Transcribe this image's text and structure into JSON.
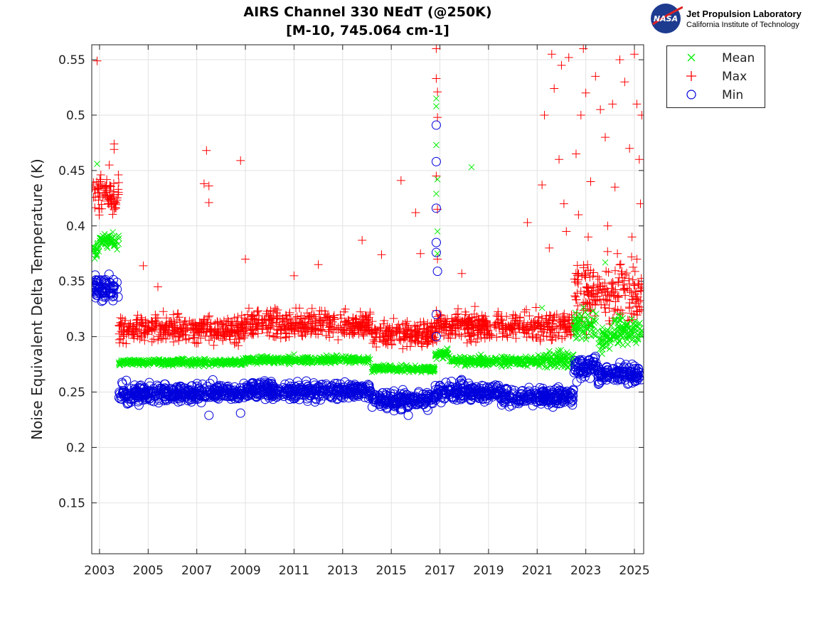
{
  "header": {
    "title_line1": "AIRS Channel 330 NEdT (@250K)",
    "title_line2": "[M-10, 745.064 cm-1]",
    "logo_text": "NASA",
    "org_name": "Jet Propulsion Laboratory",
    "org_sub": "California Institute of Technology"
  },
  "chart_data": {
    "type": "scatter",
    "title": "AIRS Channel 330 NEdT (@250K) [M-10, 745.064 cm-1]",
    "xlabel": "",
    "ylabel": "Noise Equivalent Delta Temperature (K)",
    "xlim": [
      2002.68,
      2025.38
    ],
    "ylim": [
      0.104,
      0.5635
    ],
    "xticks": [
      "2003",
      "2005",
      "2007",
      "2009",
      "2011",
      "2013",
      "2015",
      "2017",
      "2019",
      "2021",
      "2023",
      "2025"
    ],
    "yticks": [
      "0.15",
      "0.2",
      "0.25",
      "0.3",
      "0.35",
      "0.4",
      "0.45",
      "0.5",
      "0.55"
    ],
    "grid": true,
    "legend_position": "outside-top-right",
    "colors": {
      "Mean": "#00ee00",
      "Max": "#ff0000",
      "Min": "#0000dd"
    },
    "series": [
      {
        "name": "Mean",
        "marker": "x",
        "segments": [
          [
            2002.7,
            2003.0,
            0.378,
            0.004
          ],
          [
            2003.0,
            2003.8,
            0.386,
            0.003
          ],
          [
            2003.8,
            2009,
            0.277,
            0.0015
          ],
          [
            2009,
            2014.2,
            0.279,
            0.0015
          ],
          [
            2014.2,
            2016.8,
            0.271,
            0.0015
          ],
          [
            2016.8,
            2017.4,
            0.284,
            0.002
          ],
          [
            2017.4,
            2021.0,
            0.278,
            0.002
          ],
          [
            2021.0,
            2022.5,
            0.279,
            0.004
          ],
          [
            2022.5,
            2023.5,
            0.31,
            0.007
          ],
          [
            2023.5,
            2024.0,
            0.298,
            0.006
          ],
          [
            2024.0,
            2025.3,
            0.305,
            0.006
          ]
        ],
        "outliers": [
          [
            2002.9,
            0.456
          ],
          [
            2011.0,
            0.284
          ],
          [
            2016.85,
            0.515
          ],
          [
            2016.85,
            0.508
          ],
          [
            2016.85,
            0.473
          ],
          [
            2016.9,
            0.442
          ],
          [
            2016.85,
            0.429
          ],
          [
            2016.9,
            0.395
          ],
          [
            2016.9,
            0.375
          ],
          [
            2018.3,
            0.453
          ],
          [
            2023.8,
            0.367
          ],
          [
            2021.2,
            0.326
          ]
        ]
      },
      {
        "name": "Max",
        "marker": "+",
        "segments": [
          [
            2002.7,
            2003.8,
            0.428,
            0.008
          ],
          [
            2003.8,
            2009,
            0.307,
            0.006
          ],
          [
            2009,
            2014.2,
            0.311,
            0.006
          ],
          [
            2014.2,
            2016.8,
            0.303,
            0.006
          ],
          [
            2016.8,
            2022.5,
            0.31,
            0.006
          ],
          [
            2022.5,
            2025.3,
            0.338,
            0.014
          ]
        ],
        "outliers": [
          [
            2002.9,
            0.549
          ],
          [
            2003.6,
            0.474
          ],
          [
            2003.6,
            0.469
          ],
          [
            2003.4,
            0.455
          ],
          [
            2004.8,
            0.364
          ],
          [
            2005.4,
            0.345
          ],
          [
            2007.4,
            0.468
          ],
          [
            2007.3,
            0.438
          ],
          [
            2007.5,
            0.436
          ],
          [
            2007.5,
            0.421
          ],
          [
            2008.8,
            0.459
          ],
          [
            2009.0,
            0.37
          ],
          [
            2011.0,
            0.355
          ],
          [
            2012.0,
            0.365
          ],
          [
            2013.8,
            0.387
          ],
          [
            2014.6,
            0.374
          ],
          [
            2015.4,
            0.441
          ],
          [
            2016.0,
            0.412
          ],
          [
            2016.2,
            0.375
          ],
          [
            2016.85,
            0.56
          ],
          [
            2016.85,
            0.533
          ],
          [
            2016.9,
            0.521
          ],
          [
            2016.9,
            0.498
          ],
          [
            2016.85,
            0.445
          ],
          [
            2016.9,
            0.415
          ],
          [
            2016.9,
            0.37
          ],
          [
            2017.9,
            0.357
          ],
          [
            2020.6,
            0.403
          ],
          [
            2021.2,
            0.437
          ],
          [
            2021.3,
            0.5
          ],
          [
            2021.6,
            0.555
          ],
          [
            2021.7,
            0.524
          ],
          [
            2022.0,
            0.545
          ],
          [
            2022.3,
            0.552
          ],
          [
            2021.9,
            0.46
          ],
          [
            2022.1,
            0.42
          ],
          [
            2022.6,
            0.465
          ],
          [
            2022.9,
            0.56
          ],
          [
            2022.8,
            0.5
          ],
          [
            2023.0,
            0.52
          ],
          [
            2023.2,
            0.44
          ],
          [
            2023.4,
            0.535
          ],
          [
            2023.6,
            0.505
          ],
          [
            2023.8,
            0.48
          ],
          [
            2024.1,
            0.51
          ],
          [
            2024.2,
            0.435
          ],
          [
            2024.4,
            0.55
          ],
          [
            2024.6,
            0.53
          ],
          [
            2024.8,
            0.47
          ],
          [
            2025.0,
            0.555
          ],
          [
            2025.1,
            0.51
          ],
          [
            2025.2,
            0.46
          ],
          [
            2025.25,
            0.42
          ],
          [
            2025.3,
            0.5
          ],
          [
            2021.5,
            0.38
          ],
          [
            2022.2,
            0.395
          ],
          [
            2022.7,
            0.41
          ],
          [
            2023.1,
            0.39
          ],
          [
            2023.9,
            0.4
          ],
          [
            2024.3,
            0.375
          ],
          [
            2024.9,
            0.39
          ],
          [
            2025.1,
            0.37
          ]
        ]
      },
      {
        "name": "Min",
        "marker": "o",
        "segments": [
          [
            2002.7,
            2003.8,
            0.344,
            0.006
          ],
          [
            2003.8,
            2009,
            0.249,
            0.004
          ],
          [
            2009,
            2014.2,
            0.251,
            0.004
          ],
          [
            2014.2,
            2016.8,
            0.243,
            0.004
          ],
          [
            2016.8,
            2019.5,
            0.25,
            0.004
          ],
          [
            2019.5,
            2022.5,
            0.246,
            0.004
          ],
          [
            2022.5,
            2023.5,
            0.272,
            0.005
          ],
          [
            2023.5,
            2025.3,
            0.266,
            0.004
          ]
        ],
        "outliers": [
          [
            2016.85,
            0.491
          ],
          [
            2016.85,
            0.458
          ],
          [
            2016.85,
            0.416
          ],
          [
            2016.85,
            0.385
          ],
          [
            2016.85,
            0.376
          ],
          [
            2016.9,
            0.359
          ],
          [
            2016.85,
            0.32
          ],
          [
            2016.85,
            0.3
          ],
          [
            2007.5,
            0.229
          ],
          [
            2008.8,
            0.231
          ],
          [
            2015.7,
            0.229
          ]
        ]
      }
    ]
  }
}
